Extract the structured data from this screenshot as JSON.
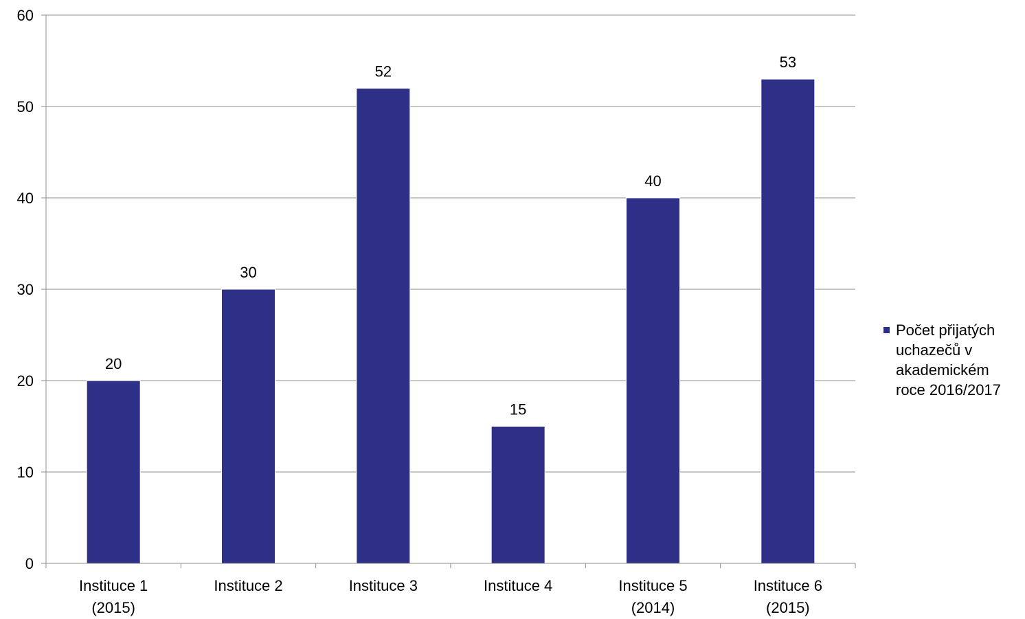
{
  "chart_data": {
    "type": "bar",
    "categories": [
      [
        "Instituce 1",
        "(2015)"
      ],
      [
        "Instituce 2"
      ],
      [
        "Instituce 3"
      ],
      [
        "Instituce 4"
      ],
      [
        "Instituce 5",
        "(2014)"
      ],
      [
        "Instituce 6",
        "(2015)"
      ]
    ],
    "series": [
      {
        "name": [
          "Počet přijatých",
          "uchazečů v",
          "akademickém",
          "roce 2016/2017"
        ],
        "values": [
          20,
          30,
          52,
          15,
          40,
          53
        ],
        "color": "#2E3087"
      }
    ],
    "ylim": [
      0,
      60
    ],
    "yticks": [
      0,
      10,
      20,
      30,
      40,
      50,
      60
    ],
    "grid": true,
    "legend": "right",
    "title": "",
    "xlabel": "",
    "ylabel": ""
  }
}
